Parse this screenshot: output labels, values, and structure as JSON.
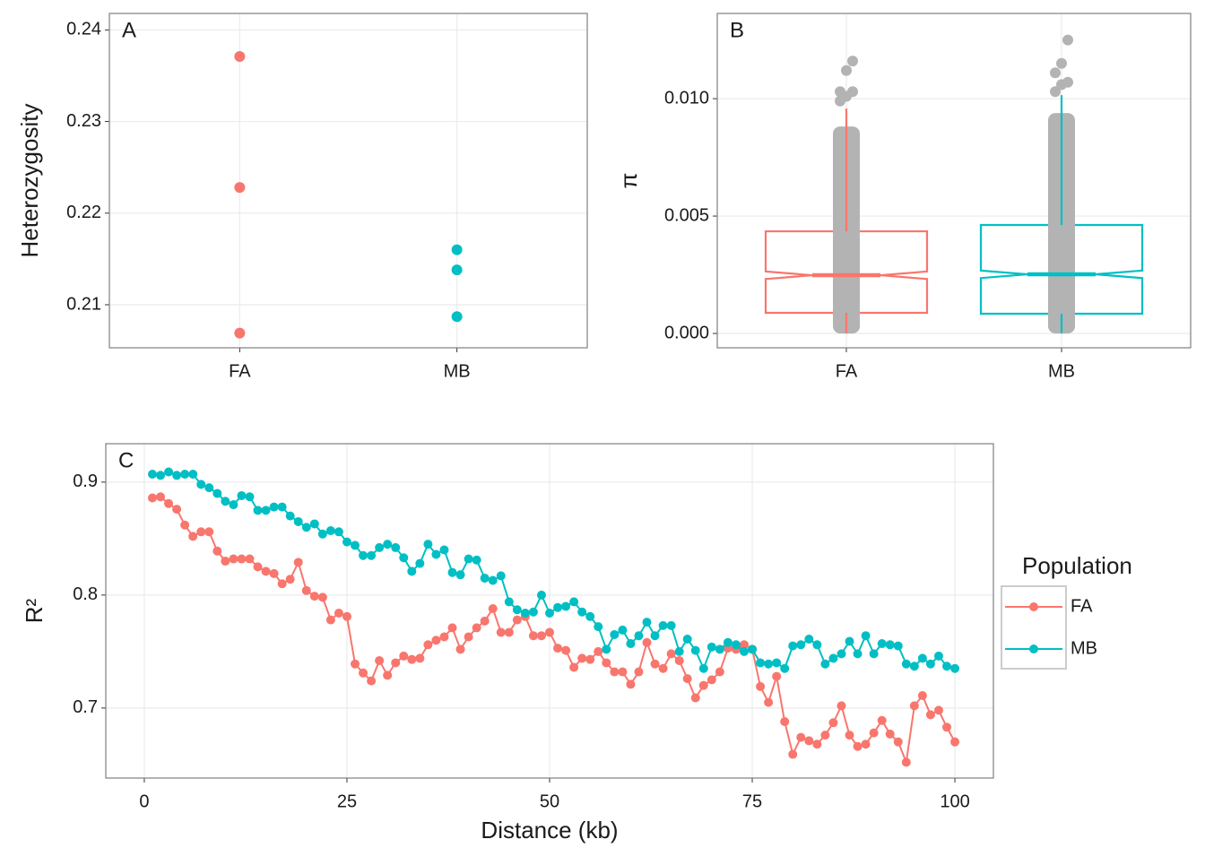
{
  "chart_data": [
    {
      "type": "strip",
      "panel_label": "A",
      "ylabel": "Heterozygosity",
      "categories": [
        "FA",
        "MB"
      ],
      "values": [
        [
          0.2371,
          0.2228,
          0.2069
        ],
        [
          0.216,
          0.2138,
          0.2087
        ]
      ],
      "colors": [
        "#F8766D",
        "#00BFC4"
      ],
      "ylim": [
        0.2053,
        0.2418
      ],
      "yticks": [
        0.21,
        0.22,
        0.23,
        0.24
      ],
      "grid": true
    },
    {
      "type": "box",
      "panel_label": "B",
      "ylabel": "π",
      "categories": [
        "FA",
        "MB"
      ],
      "boxes": [
        {
          "whisker_low": 0,
          "q1": 0.00088,
          "notch_low": 0.00232,
          "median": 0.00248,
          "notch_high": 0.00264,
          "q3": 0.00435,
          "whisker_high": 0.00958,
          "outliers": [
            0.0099,
            0.0101,
            0.0103,
            0.0103,
            0.0112,
            0.0116
          ]
        },
        {
          "whisker_low": 0,
          "q1": 0.00084,
          "notch_low": 0.00236,
          "median": 0.00252,
          "notch_high": 0.00268,
          "q3": 0.00462,
          "whisker_high": 0.01015,
          "outliers": [
            0.0103,
            0.0106,
            0.0107,
            0.0111,
            0.0115,
            0.0125
          ]
        }
      ],
      "colors": [
        "#F8766D",
        "#00BFC4"
      ],
      "outlier_color": "#b3b3b3",
      "ylim": [
        -0.00061,
        0.01363
      ],
      "yticks": [
        {
          "value": 0,
          "label": "0.000"
        },
        {
          "value": 0.005,
          "label": "0.005"
        },
        {
          "value": 0.01,
          "label": "0.010"
        }
      ],
      "grid": true
    },
    {
      "type": "line",
      "panel_label": "C",
      "xlabel": "Distance (kb)",
      "ylabel": "R²",
      "x": [
        1,
        2,
        3,
        4,
        5,
        6,
        7,
        8,
        9,
        10,
        11,
        12,
        13,
        14,
        15,
        16,
        17,
        18,
        19,
        20,
        21,
        22,
        23,
        24,
        25,
        26,
        27,
        28,
        29,
        30,
        31,
        32,
        33,
        34,
        35,
        36,
        37,
        38,
        39,
        40,
        41,
        42,
        43,
        44,
        45,
        46,
        47,
        48,
        49,
        50,
        51,
        52,
        53,
        54,
        55,
        56,
        57,
        58,
        59,
        60,
        61,
        62,
        63,
        64,
        65,
        66,
        67,
        68,
        69,
        70,
        71,
        72,
        73,
        74,
        75,
        76,
        77,
        78,
        79,
        80,
        81,
        82,
        83,
        84,
        85,
        86,
        87,
        88,
        89,
        90,
        91,
        92,
        93,
        94,
        95,
        96,
        97,
        98,
        99,
        100
      ],
      "series": [
        {
          "name": "FA",
          "color": "#F8766D",
          "values": [
            0.886,
            0.887,
            0.881,
            0.876,
            0.862,
            0.852,
            0.856,
            0.856,
            0.839,
            0.83,
            0.832,
            0.832,
            0.832,
            0.825,
            0.821,
            0.819,
            0.81,
            0.814,
            0.829,
            0.804,
            0.799,
            0.798,
            0.778,
            0.784,
            0.781,
            0.739,
            0.731,
            0.724,
            0.742,
            0.729,
            0.74,
            0.746,
            0.743,
            0.744,
            0.756,
            0.76,
            0.763,
            0.771,
            0.752,
            0.763,
            0.771,
            0.777,
            0.788,
            0.767,
            0.767,
            0.778,
            0.781,
            0.764,
            0.764,
            0.767,
            0.753,
            0.751,
            0.736,
            0.744,
            0.743,
            0.75,
            0.74,
            0.732,
            0.732,
            0.721,
            0.732,
            0.758,
            0.739,
            0.735,
            0.748,
            0.742,
            0.726,
            0.709,
            0.72,
            0.725,
            0.732,
            0.753,
            0.752,
            0.756,
            0.752,
            0.719,
            0.705,
            0.728,
            0.688,
            0.659,
            0.674,
            0.671,
            0.668,
            0.676,
            0.687,
            0.702,
            0.676,
            0.666,
            0.668,
            0.678,
            0.689,
            0.677,
            0.67,
            0.652,
            0.702,
            0.711,
            0.694,
            0.698,
            0.683,
            0.67
          ]
        },
        {
          "name": "MB",
          "color": "#00BFC4",
          "values": [
            0.907,
            0.906,
            0.909,
            0.906,
            0.907,
            0.907,
            0.898,
            0.895,
            0.89,
            0.883,
            0.88,
            0.888,
            0.887,
            0.875,
            0.875,
            0.878,
            0.878,
            0.87,
            0.865,
            0.86,
            0.863,
            0.854,
            0.857,
            0.856,
            0.847,
            0.844,
            0.835,
            0.835,
            0.842,
            0.845,
            0.842,
            0.833,
            0.821,
            0.828,
            0.845,
            0.836,
            0.84,
            0.82,
            0.818,
            0.832,
            0.831,
            0.815,
            0.813,
            0.817,
            0.794,
            0.787,
            0.784,
            0.785,
            0.8,
            0.784,
            0.789,
            0.79,
            0.794,
            0.785,
            0.781,
            0.772,
            0.752,
            0.765,
            0.769,
            0.757,
            0.764,
            0.776,
            0.764,
            0.773,
            0.773,
            0.75,
            0.761,
            0.751,
            0.735,
            0.754,
            0.752,
            0.758,
            0.756,
            0.75,
            0.752,
            0.74,
            0.739,
            0.74,
            0.735,
            0.755,
            0.756,
            0.761,
            0.756,
            0.739,
            0.744,
            0.748,
            0.759,
            0.748,
            0.764,
            0.748,
            0.757,
            0.756,
            0.755,
            0.739,
            0.737,
            0.744,
            0.739,
            0.746,
            0.737,
            0.735
          ]
        }
      ],
      "legend_title": "Population",
      "legend": "right",
      "xlim": [
        -4.75,
        104.75
      ],
      "xticks": [
        0,
        25,
        50,
        75,
        100
      ],
      "ylim": [
        0.638,
        0.934
      ],
      "yticks": [
        0.7,
        0.8,
        0.9
      ],
      "grid": true
    }
  ]
}
